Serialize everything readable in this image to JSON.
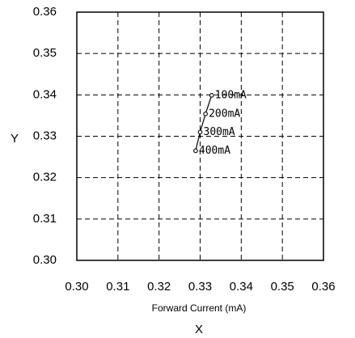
{
  "chart_data": {
    "type": "line",
    "title": "",
    "xlabel": "Forward Current (mA)",
    "xlabel_letter": "X",
    "ylabel": "Y",
    "xlim": [
      0.3,
      0.36
    ],
    "ylim": [
      0.3,
      0.36
    ],
    "x_ticks": [
      "0.30",
      "0.31",
      "0.32",
      "0.33",
      "0.34",
      "0.35",
      "0.36"
    ],
    "y_ticks": [
      "0.30",
      "0.31",
      "0.32",
      "0.33",
      "0.34",
      "0.35",
      "0.36"
    ],
    "grid": true,
    "grid_style": "dashed",
    "series": [
      {
        "color": "#000000",
        "points": [
          {
            "x": 0.3328,
            "y": 0.3399,
            "label": "100mA"
          },
          {
            "x": 0.3313,
            "y": 0.3354,
            "label": "200mA"
          },
          {
            "x": 0.33,
            "y": 0.331,
            "label": "300mA"
          },
          {
            "x": 0.3289,
            "y": 0.3265,
            "label": "400mA"
          }
        ]
      }
    ]
  }
}
